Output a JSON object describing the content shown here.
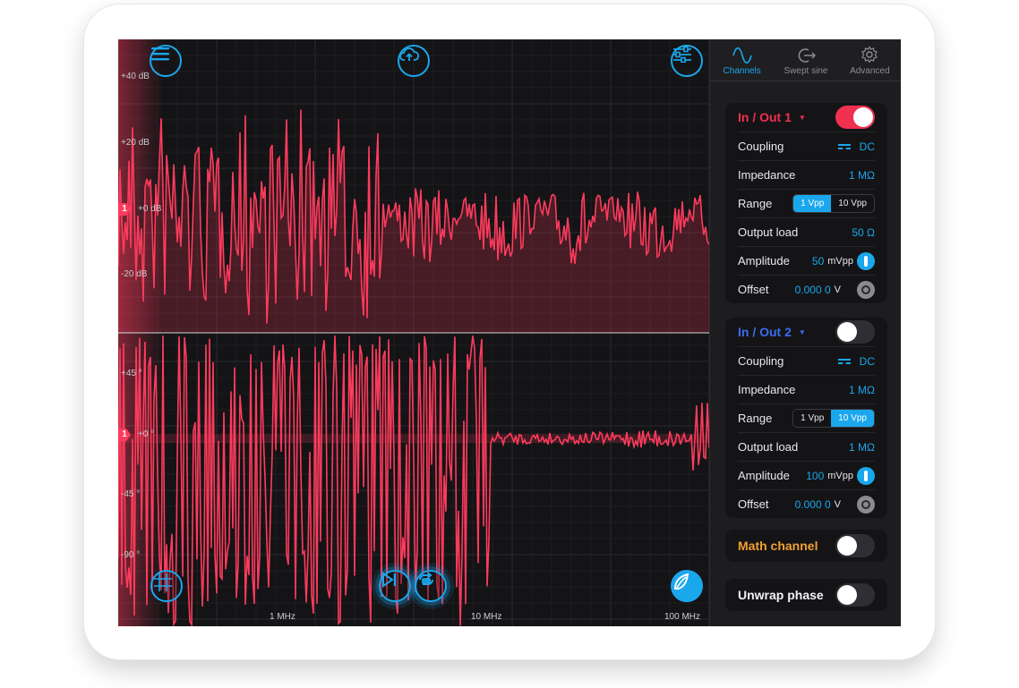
{
  "plot": {
    "top_ylabels": [
      "+40 dB",
      "+20 dB",
      "+0 dB",
      "-20 dB"
    ],
    "bottom_ylabels": [
      "+45 °",
      "+0 °",
      "-45 °",
      "-90 °"
    ],
    "xlabels": [
      "1 MHz",
      "10 MHz",
      "100 MHz"
    ],
    "marker_label": "1",
    "trace_color": "#ff3b5c",
    "accent": "#1aa7ec",
    "icons": {
      "menu": "menu-icon",
      "upload": "cloud-upload-icon",
      "settings": "sliders-icon",
      "cursor": "crosshair-icon",
      "play": "play-step-icon",
      "loop": "loop-icon",
      "logo": "moku-logo-icon"
    }
  },
  "tabs": [
    {
      "label": "Channels",
      "icon": "sine-wave-icon",
      "active": true
    },
    {
      "label": "Swept sine",
      "icon": "swept-sine-icon",
      "active": false
    },
    {
      "label": "Advanced",
      "icon": "gear-icon",
      "active": false
    }
  ],
  "ch1": {
    "title": "In / Out 1",
    "color": "#f0304f",
    "enabled": true,
    "coupling_label": "Coupling",
    "coupling": "DC",
    "impedance_label": "Impedance",
    "impedance": "1 MΩ",
    "range_label": "Range",
    "range_options": [
      "1 Vpp",
      "10 Vpp"
    ],
    "range_selected": "1 Vpp",
    "output_load_label": "Output load",
    "output_load": "50 Ω",
    "amplitude_label": "Amplitude",
    "amplitude": "50",
    "amplitude_unit": "mVpp",
    "offset_label": "Offset",
    "offset": "0.000 0",
    "offset_unit": "V"
  },
  "ch2": {
    "title": "In / Out 2",
    "color": "#3b6cf0",
    "enabled": false,
    "coupling_label": "Coupling",
    "coupling": "DC",
    "impedance_label": "Impedance",
    "impedance": "1 MΩ",
    "range_label": "Range",
    "range_options": [
      "1 Vpp",
      "10 Vpp"
    ],
    "range_selected": "10 Vpp",
    "output_load_label": "Output load",
    "output_load": "1 MΩ",
    "amplitude_label": "Amplitude",
    "amplitude": "100",
    "amplitude_unit": "mVpp",
    "offset_label": "Offset",
    "offset": "0.000 0",
    "offset_unit": "V"
  },
  "math": {
    "label": "Math channel",
    "color": "#f0a030",
    "enabled": false
  },
  "unwrap": {
    "label": "Unwrap phase",
    "enabled": false
  }
}
